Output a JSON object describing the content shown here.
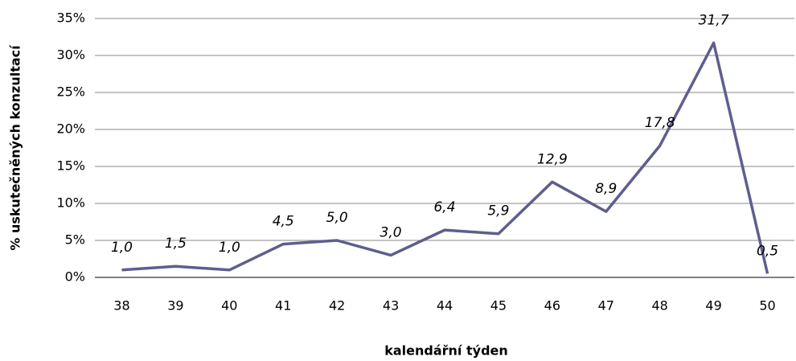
{
  "chart_data": {
    "type": "line",
    "x_label": "kalendářní týden",
    "y_label": "% uskutečněných konzultací",
    "categories": [
      "38",
      "39",
      "40",
      "41",
      "42",
      "43",
      "44",
      "45",
      "46",
      "47",
      "48",
      "49",
      "50"
    ],
    "series": [
      {
        "color": "#5e5e8e",
        "values": [
          1.0,
          1.5,
          1.0,
          4.5,
          5.0,
          3.0,
          6.4,
          5.9,
          12.9,
          8.9,
          17.8,
          31.7,
          0.5
        ],
        "value_labels": [
          "1,0",
          "1,5",
          "1,0",
          "4,5",
          "5,0",
          "3,0",
          "6,4",
          "5,9",
          "12,9",
          "8,9",
          "17,8",
          "31,7",
          "0,5"
        ]
      }
    ],
    "ylim": [
      0,
      35
    ],
    "yticks": [
      {
        "value": 0,
        "label": "0%"
      },
      {
        "value": 5,
        "label": "5%"
      },
      {
        "value": 10,
        "label": "10%"
      },
      {
        "value": 15,
        "label": "15%"
      },
      {
        "value": 20,
        "label": "20%"
      },
      {
        "value": 25,
        "label": "25%"
      },
      {
        "value": 30,
        "label": "30%"
      },
      {
        "value": 35,
        "label": "35%"
      }
    ],
    "grid": true
  }
}
